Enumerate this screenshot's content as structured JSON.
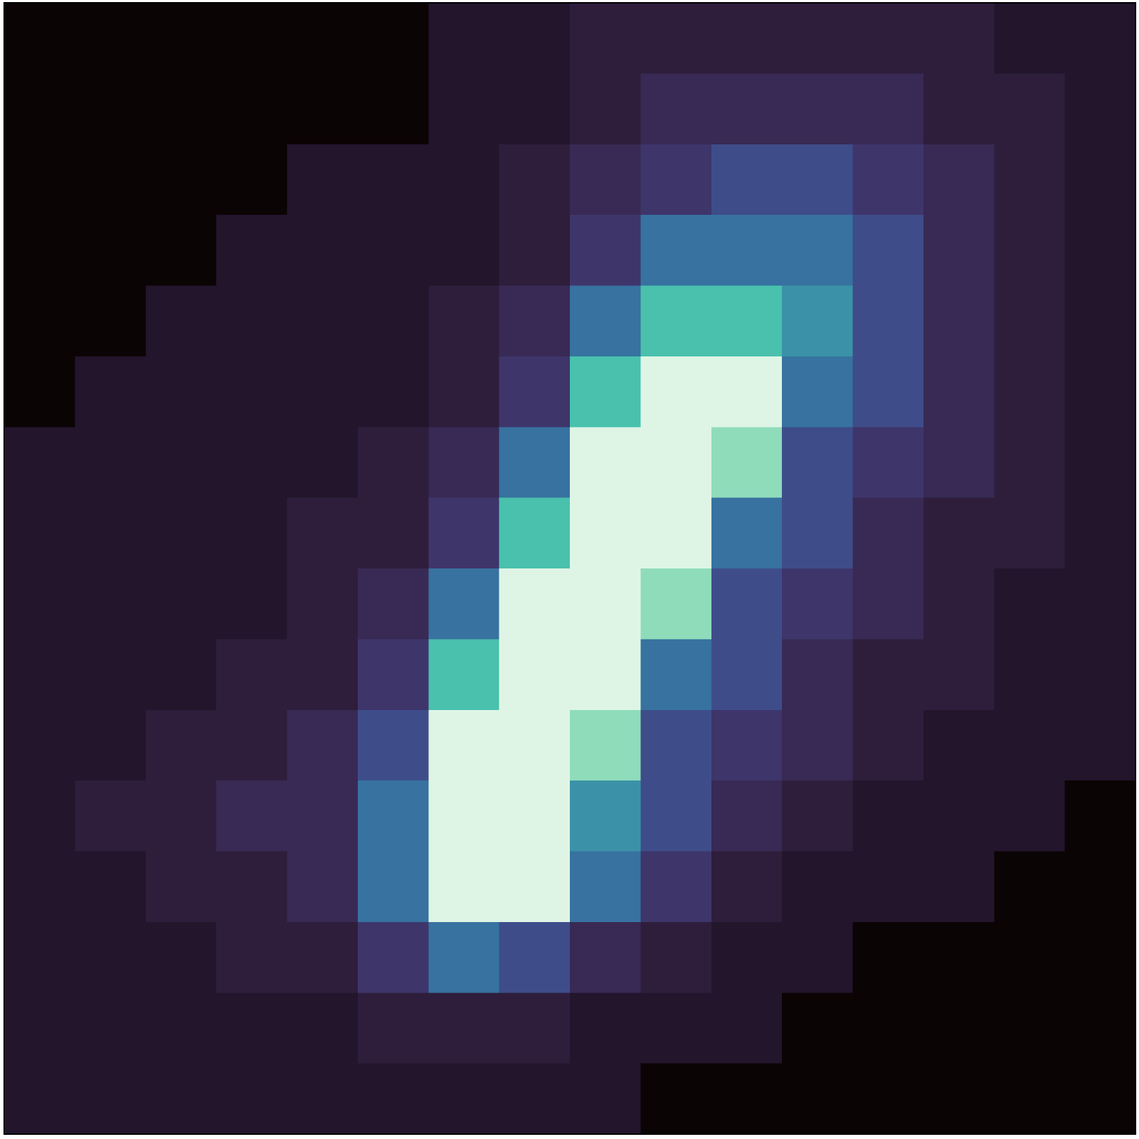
{
  "chart_data": {
    "type": "heatmap",
    "zlim": [
      0,
      10
    ],
    "colormap": [
      "#0b0405",
      "#22152c",
      "#2e1e3c",
      "#382a54",
      "#3e356b",
      "#3e4d8a",
      "#3772a0",
      "#3b92a8",
      "#49c1ad",
      "#8fdcbb",
      "#def5e5"
    ],
    "z": [
      [
        0,
        0,
        0,
        0,
        0,
        0,
        1,
        1,
        2,
        2,
        2,
        2,
        2,
        2,
        1,
        1
      ],
      [
        0,
        0,
        0,
        0,
        0,
        0,
        1,
        1,
        2,
        3,
        3,
        3,
        3,
        2,
        2,
        1
      ],
      [
        0,
        0,
        0,
        0,
        1,
        1,
        1,
        2,
        3,
        4,
        5,
        5,
        4,
        3,
        2,
        1
      ],
      [
        0,
        0,
        0,
        1,
        1,
        1,
        1,
        2,
        4,
        6,
        6,
        6,
        5,
        3,
        2,
        1
      ],
      [
        0,
        0,
        1,
        1,
        1,
        1,
        2,
        3,
        6,
        8,
        8,
        7,
        5,
        3,
        2,
        1
      ],
      [
        0,
        1,
        1,
        1,
        1,
        1,
        2,
        4,
        8,
        10,
        10,
        6,
        5,
        3,
        2,
        1
      ],
      [
        1,
        1,
        1,
        1,
        1,
        2,
        3,
        6,
        10,
        10,
        9,
        5,
        4,
        3,
        2,
        1
      ],
      [
        1,
        1,
        1,
        1,
        2,
        2,
        4,
        8,
        10,
        10,
        6,
        5,
        3,
        2,
        2,
        1
      ],
      [
        1,
        1,
        1,
        1,
        2,
        3,
        6,
        10,
        10,
        9,
        5,
        4,
        3,
        2,
        1,
        1
      ],
      [
        1,
        1,
        1,
        2,
        2,
        4,
        8,
        10,
        10,
        6,
        5,
        3,
        2,
        2,
        1,
        1
      ],
      [
        1,
        1,
        2,
        2,
        3,
        5,
        10,
        10,
        9,
        5,
        4,
        3,
        2,
        1,
        1,
        1
      ],
      [
        1,
        2,
        2,
        3,
        3,
        6,
        10,
        10,
        7,
        5,
        3,
        2,
        1,
        1,
        1,
        0
      ],
      [
        1,
        1,
        2,
        2,
        3,
        6,
        10,
        10,
        6,
        4,
        2,
        1,
        1,
        1,
        0,
        0
      ],
      [
        1,
        1,
        1,
        2,
        2,
        4,
        6,
        5,
        3,
        2,
        1,
        1,
        0,
        0,
        0,
        0
      ],
      [
        1,
        1,
        1,
        1,
        1,
        2,
        2,
        2,
        1,
        1,
        1,
        0,
        0,
        0,
        0,
        0
      ],
      [
        1,
        1,
        1,
        1,
        1,
        1,
        1,
        1,
        1,
        0,
        0,
        0,
        0,
        0,
        0,
        0
      ]
    ]
  }
}
